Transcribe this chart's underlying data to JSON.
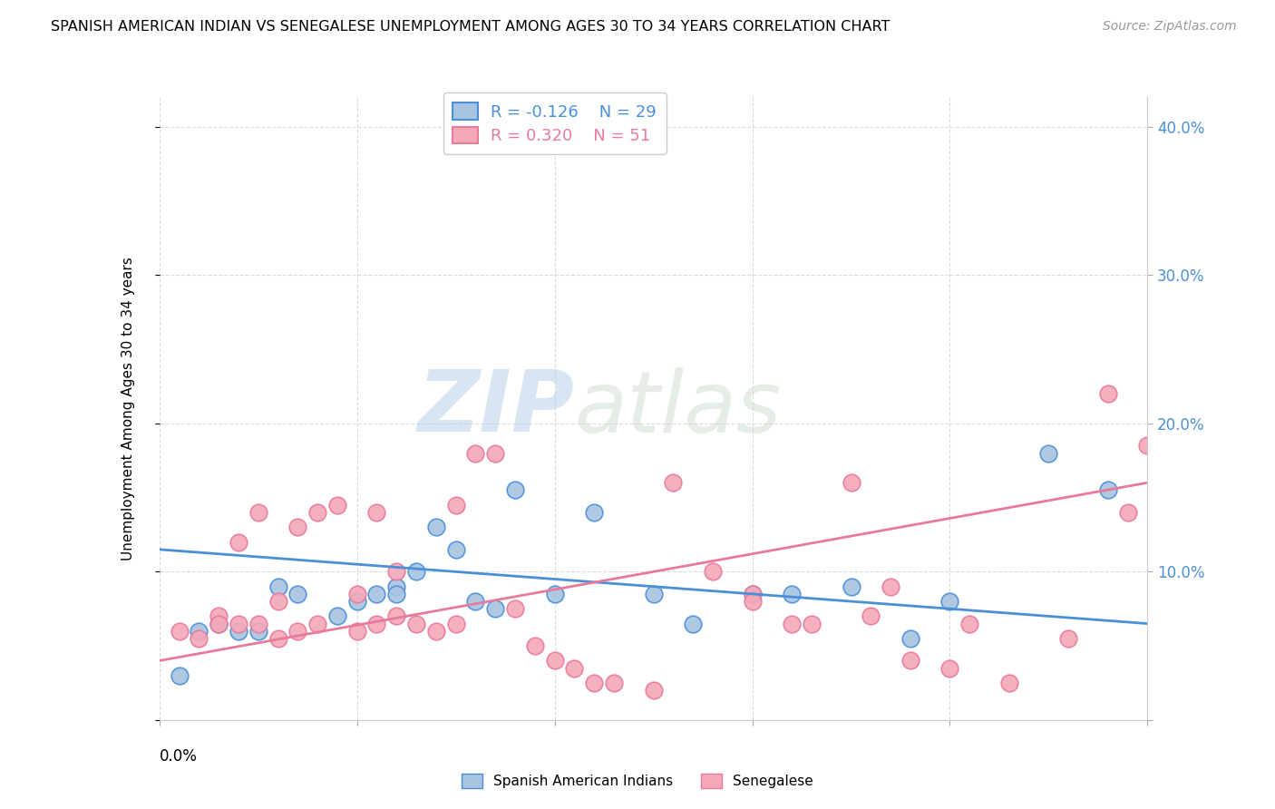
{
  "title": "SPANISH AMERICAN INDIAN VS SENEGALESE UNEMPLOYMENT AMONG AGES 30 TO 34 YEARS CORRELATION CHART",
  "source": "Source: ZipAtlas.com",
  "ylabel": "Unemployment Among Ages 30 to 34 years",
  "legend1_label": "Spanish American Indians",
  "legend2_label": "Senegalese",
  "r1": -0.126,
  "n1": 29,
  "r2": 0.32,
  "n2": 51,
  "color_blue_fill": "#a8c4e0",
  "color_pink_fill": "#f4a8b8",
  "color_blue_edge": "#4a90d9",
  "color_pink_edge": "#e87a9a",
  "watermark_zip": "ZIP",
  "watermark_atlas": "atlas",
  "blue_scatter_x": [
    0.002,
    0.001,
    0.005,
    0.003,
    0.004,
    0.006,
    0.007,
    0.009,
    0.01,
    0.011,
    0.012,
    0.012,
    0.013,
    0.014,
    0.015,
    0.016,
    0.017,
    0.018,
    0.02,
    0.022,
    0.025,
    0.027,
    0.03,
    0.032,
    0.035,
    0.038,
    0.04,
    0.045,
    0.048
  ],
  "blue_scatter_y": [
    0.06,
    0.03,
    0.06,
    0.065,
    0.06,
    0.09,
    0.085,
    0.07,
    0.08,
    0.085,
    0.09,
    0.085,
    0.1,
    0.13,
    0.115,
    0.08,
    0.075,
    0.155,
    0.085,
    0.14,
    0.085,
    0.065,
    0.085,
    0.085,
    0.09,
    0.055,
    0.08,
    0.18,
    0.155
  ],
  "pink_scatter_x": [
    0.001,
    0.002,
    0.003,
    0.003,
    0.004,
    0.004,
    0.005,
    0.005,
    0.006,
    0.006,
    0.007,
    0.007,
    0.008,
    0.008,
    0.009,
    0.01,
    0.01,
    0.011,
    0.011,
    0.012,
    0.012,
    0.013,
    0.014,
    0.015,
    0.015,
    0.016,
    0.017,
    0.018,
    0.019,
    0.02,
    0.021,
    0.022,
    0.023,
    0.025,
    0.026,
    0.028,
    0.03,
    0.03,
    0.032,
    0.033,
    0.035,
    0.036,
    0.037,
    0.038,
    0.04,
    0.041,
    0.043,
    0.046,
    0.048,
    0.049,
    0.05
  ],
  "pink_scatter_y": [
    0.06,
    0.055,
    0.07,
    0.065,
    0.12,
    0.065,
    0.065,
    0.14,
    0.055,
    0.08,
    0.06,
    0.13,
    0.065,
    0.14,
    0.145,
    0.085,
    0.06,
    0.065,
    0.14,
    0.07,
    0.1,
    0.065,
    0.06,
    0.065,
    0.145,
    0.18,
    0.18,
    0.075,
    0.05,
    0.04,
    0.035,
    0.025,
    0.025,
    0.02,
    0.16,
    0.1,
    0.085,
    0.08,
    0.065,
    0.065,
    0.16,
    0.07,
    0.09,
    0.04,
    0.035,
    0.065,
    0.025,
    0.055,
    0.22,
    0.14,
    0.185
  ],
  "blue_line_x": [
    0.0,
    0.05
  ],
  "blue_line_y": [
    0.115,
    0.065
  ],
  "pink_line_x": [
    0.0,
    0.05
  ],
  "pink_line_y": [
    0.04,
    0.16
  ],
  "xmin": 0.0,
  "xmax": 0.05,
  "ymin": 0.0,
  "ymax": 0.42,
  "yticks": [
    0.0,
    0.1,
    0.2,
    0.3,
    0.4
  ],
  "ytick_labels": [
    "",
    "10.0%",
    "20.0%",
    "30.0%",
    "40.0%"
  ],
  "xticks": [
    0.0,
    0.01,
    0.02,
    0.03,
    0.04,
    0.05
  ],
  "bg_color": "#ffffff",
  "grid_color": "#cccccc"
}
